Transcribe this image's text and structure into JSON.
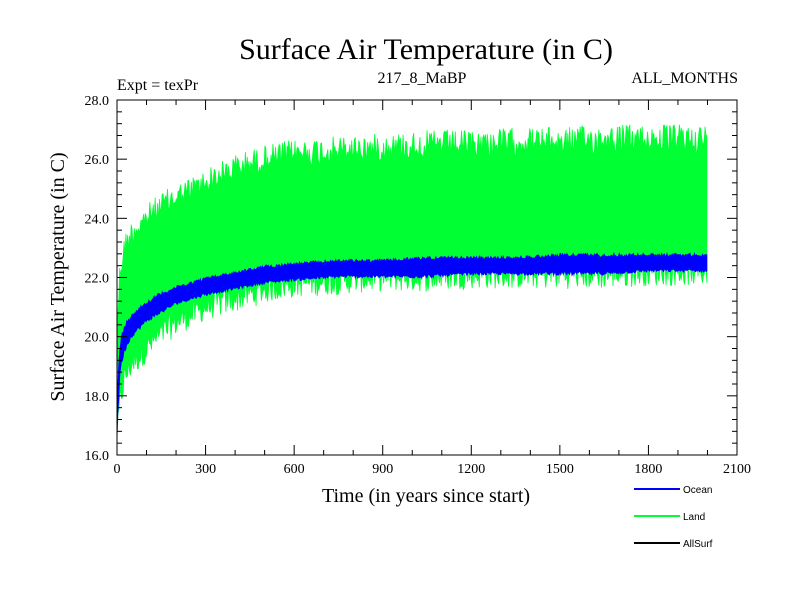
{
  "chart_data": {
    "type": "line",
    "title": "Surface Air Temperature (in C)",
    "subtitle_left": "Expt = texPr",
    "subtitle_center": "217_8_MaBP",
    "subtitle_right": "ALL_MONTHS",
    "xlabel": "Time (in years since start)",
    "ylabel": "Surface Air Temperature (in C)",
    "xlim": [
      0,
      2100
    ],
    "ylim": [
      16.0,
      28.0
    ],
    "x_ticks": [
      0,
      300,
      600,
      900,
      1200,
      1500,
      1800,
      2100
    ],
    "x_tick_labels": [
      "0",
      "300",
      "600",
      "900",
      "1200",
      "1500",
      "1800",
      "2100"
    ],
    "y_ticks": [
      16.0,
      18.0,
      20.0,
      22.0,
      24.0,
      26.0,
      28.0
    ],
    "y_tick_labels": [
      "16.0",
      "18.0",
      "20.0",
      "22.0",
      "24.0",
      "26.0",
      "28.0"
    ],
    "legend_position": "bottom-right",
    "series": [
      {
        "name": "Land",
        "color": "#00ff33",
        "x": [
          0,
          10,
          25,
          50,
          100,
          150,
          200,
          300,
          400,
          500,
          600,
          750,
          900,
          1050,
          1200,
          1350,
          1500,
          1650,
          1800,
          1950,
          2000
        ],
        "upper": [
          20.5,
          22.5,
          23.3,
          23.8,
          24.3,
          24.7,
          25.0,
          25.5,
          26.0,
          26.3,
          26.5,
          26.6,
          26.7,
          26.8,
          26.8,
          26.9,
          26.9,
          27.0,
          27.0,
          27.0,
          27.0
        ],
        "lower": [
          16.4,
          17.5,
          18.3,
          18.8,
          19.3,
          19.8,
          20.2,
          20.7,
          21.0,
          21.3,
          21.5,
          21.6,
          21.7,
          21.7,
          21.8,
          21.8,
          21.8,
          21.8,
          21.9,
          21.9,
          21.9
        ]
      },
      {
        "name": "Ocean",
        "color": "#0000ff",
        "x": [
          0,
          10,
          25,
          50,
          100,
          150,
          200,
          300,
          400,
          500,
          600,
          750,
          900,
          1050,
          1200,
          1350,
          1500,
          1650,
          1800,
          1950,
          2000
        ],
        "upper": [
          18.0,
          19.8,
          20.4,
          20.8,
          21.2,
          21.5,
          21.7,
          22.0,
          22.2,
          22.4,
          22.5,
          22.6,
          22.6,
          22.7,
          22.7,
          22.7,
          22.8,
          22.8,
          22.8,
          22.8,
          22.8
        ],
        "lower": [
          16.6,
          18.8,
          19.5,
          20.0,
          20.5,
          20.8,
          21.1,
          21.4,
          21.6,
          21.8,
          21.9,
          22.0,
          22.0,
          22.0,
          22.1,
          22.1,
          22.1,
          22.1,
          22.2,
          22.2,
          22.2
        ]
      },
      {
        "name": "AllSurf",
        "color": "#000000",
        "x": [],
        "upper": [],
        "lower": []
      }
    ]
  }
}
